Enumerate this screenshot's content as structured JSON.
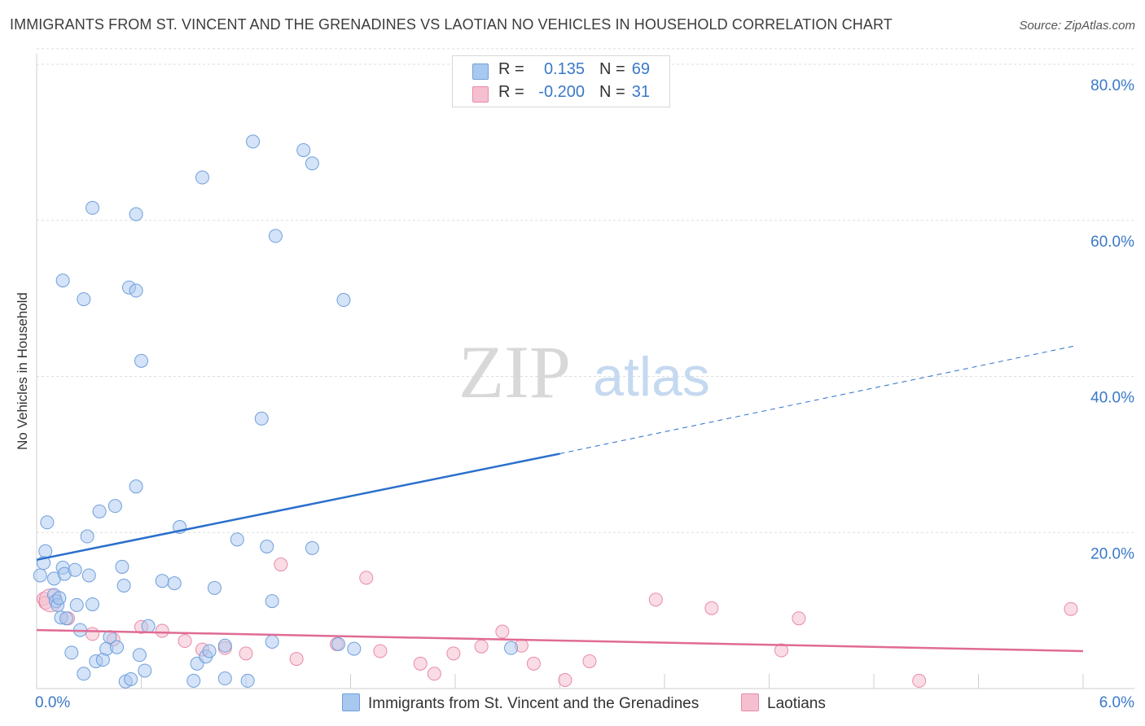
{
  "title": "IMMIGRANTS FROM ST. VINCENT AND THE GRENADINES VS LAOTIAN NO VEHICLES IN HOUSEHOLD CORRELATION CHART",
  "source": "Source: ZipAtlas.com",
  "watermark": {
    "zip": "ZIP",
    "atlas": "atlas"
  },
  "colors": {
    "blue_fill": "#a9c8ef",
    "blue_stroke": "#6f9fdc",
    "blue_line": "#2b6fcc",
    "pink_fill": "#f6bfd0",
    "pink_stroke": "#e88aa9",
    "pink_line": "#e06b94",
    "value_text": "#3a78c9",
    "grid": "#dddddd"
  },
  "legend": {
    "rows": [
      {
        "r_label": "R =",
        "r_value": "0.135",
        "n_label": "N =",
        "n_value": "69"
      },
      {
        "r_label": "R =",
        "r_value": "-0.200",
        "n_label": "N =",
        "n_value": "31"
      }
    ]
  },
  "chart_data": {
    "type": "scatter",
    "title": "IMMIGRANTS FROM ST. VINCENT AND THE GRENADINES VS LAOTIAN NO VEHICLES IN HOUSEHOLD CORRELATION CHART",
    "xlabel": "",
    "ylabel": "No Vehicles in Household",
    "xlim": [
      0,
      6
    ],
    "ylim": [
      0,
      80
    ],
    "x_tick_labels": [
      "0.0%",
      "6.0%"
    ],
    "y_ticks": [
      20,
      40,
      60,
      80
    ],
    "y_tick_labels": [
      "20.0%",
      "40.0%",
      "60.0%",
      "80.0%"
    ],
    "grid": true,
    "legend_position": "top-center",
    "series": [
      {
        "name": "Immigrants from St. Vincent and the Grenadines",
        "color": "#a9c8ef",
        "points": [
          [
            0.02,
            14.5
          ],
          [
            0.04,
            16.1
          ],
          [
            0.05,
            17.6
          ],
          [
            0.06,
            21.3
          ],
          [
            0.1,
            14.1
          ],
          [
            0.1,
            12.0
          ],
          [
            0.11,
            11.2
          ],
          [
            0.12,
            10.7
          ],
          [
            0.13,
            11.6
          ],
          [
            0.14,
            9.1
          ],
          [
            0.15,
            15.5
          ],
          [
            0.16,
            14.7
          ],
          [
            0.17,
            9.0
          ],
          [
            0.2,
            4.6
          ],
          [
            0.22,
            15.2
          ],
          [
            0.23,
            10.7
          ],
          [
            0.25,
            7.5
          ],
          [
            0.27,
            1.9
          ],
          [
            0.29,
            19.5
          ],
          [
            0.3,
            14.5
          ],
          [
            0.32,
            10.8
          ],
          [
            0.34,
            3.5
          ],
          [
            0.36,
            22.7
          ],
          [
            0.38,
            3.7
          ],
          [
            0.4,
            5.1
          ],
          [
            0.42,
            6.6
          ],
          [
            0.45,
            23.4
          ],
          [
            0.46,
            5.3
          ],
          [
            0.49,
            15.6
          ],
          [
            0.5,
            13.2
          ],
          [
            0.51,
            0.9
          ],
          [
            0.54,
            1.2
          ],
          [
            0.57,
            25.9
          ],
          [
            0.59,
            4.3
          ],
          [
            0.62,
            2.3
          ],
          [
            0.64,
            8.0
          ],
          [
            0.72,
            13.8
          ],
          [
            0.79,
            13.5
          ],
          [
            0.82,
            20.7
          ],
          [
            0.9,
            1.0
          ],
          [
            0.92,
            3.2
          ],
          [
            0.97,
            4.1
          ],
          [
            0.99,
            4.8
          ],
          [
            1.02,
            12.9
          ],
          [
            1.08,
            5.5
          ],
          [
            1.08,
            1.3
          ],
          [
            1.15,
            19.1
          ],
          [
            1.21,
            1.0
          ],
          [
            1.32,
            18.2
          ],
          [
            1.35,
            11.2
          ],
          [
            1.35,
            6.0
          ],
          [
            1.58,
            18.0
          ],
          [
            1.73,
            5.7
          ],
          [
            1.76,
            49.8
          ],
          [
            1.82,
            5.1
          ],
          [
            0.32,
            61.6
          ],
          [
            0.57,
            60.8
          ],
          [
            0.27,
            49.9
          ],
          [
            0.15,
            52.3
          ],
          [
            0.53,
            51.4
          ],
          [
            0.57,
            51.0
          ],
          [
            0.6,
            42.0
          ],
          [
            0.95,
            65.5
          ],
          [
            1.24,
            70.1
          ],
          [
            1.37,
            58.0
          ],
          [
            1.53,
            69.0
          ],
          [
            1.58,
            67.3
          ],
          [
            1.29,
            34.6
          ],
          [
            2.72,
            5.2
          ]
        ]
      },
      {
        "name": "Laotians",
        "color": "#f6bfd0",
        "points": [
          [
            0.04,
            11.5
          ],
          [
            0.05,
            11.0
          ],
          [
            0.18,
            9.0
          ],
          [
            0.32,
            7.0
          ],
          [
            0.44,
            6.3
          ],
          [
            0.6,
            7.9
          ],
          [
            0.72,
            7.4
          ],
          [
            0.85,
            6.1
          ],
          [
            0.95,
            5.0
          ],
          [
            1.08,
            5.2
          ],
          [
            1.2,
            4.5
          ],
          [
            1.4,
            15.9
          ],
          [
            1.49,
            3.8
          ],
          [
            1.72,
            5.7
          ],
          [
            1.89,
            14.2
          ],
          [
            1.97,
            4.8
          ],
          [
            2.2,
            3.2
          ],
          [
            2.28,
            1.9
          ],
          [
            2.39,
            4.5
          ],
          [
            2.55,
            5.4
          ],
          [
            2.67,
            7.3
          ],
          [
            2.78,
            5.5
          ],
          [
            2.85,
            3.2
          ],
          [
            3.03,
            1.1
          ],
          [
            3.17,
            3.5
          ],
          [
            3.55,
            11.4
          ],
          [
            3.87,
            10.3
          ],
          [
            4.27,
            4.9
          ],
          [
            4.37,
            9.0
          ],
          [
            5.06,
            1.0
          ],
          [
            5.93,
            10.2
          ]
        ]
      }
    ],
    "trend_lines": [
      {
        "series": "Immigrants from St. Vincent and the Grenadines",
        "x_start": 0,
        "y_start": 16.5,
        "x_solid_end": 3.0,
        "y_solid_end": 30.1,
        "x_end": 5.95,
        "y_end": 43.9
      },
      {
        "series": "Laotians",
        "x_start": 0,
        "y_start": 7.5,
        "x_end": 6.0,
        "y_end": 4.8
      }
    ]
  },
  "bottom_legend": {
    "series1": "Immigrants from St. Vincent and the Grenadines",
    "series2": "Laotians"
  },
  "axis": {
    "x_min_label": "0.0%",
    "x_max_label": "6.0%",
    "y_label": "No Vehicles in Household"
  }
}
